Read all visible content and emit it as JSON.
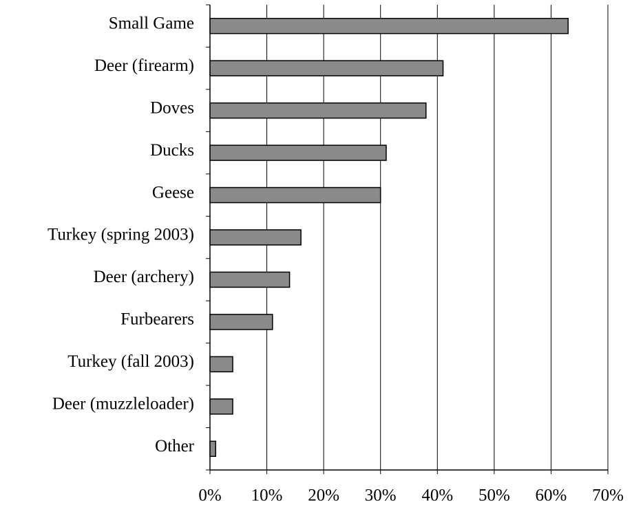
{
  "chart_data": {
    "type": "bar",
    "orientation": "horizontal",
    "categories": [
      "Small Game",
      "Deer (firearm)",
      "Doves",
      "Ducks",
      "Geese",
      "Turkey (spring 2003)",
      "Deer (archery)",
      "Furbearers",
      "Turkey (fall 2003)",
      "Deer (muzzleloader)",
      "Other"
    ],
    "values": [
      63,
      41,
      38,
      31,
      30,
      16,
      14,
      11,
      4,
      4,
      1
    ],
    "color": "#8a8a8a",
    "xlim": [
      0,
      70
    ],
    "xticks": [
      {
        "value": 0,
        "label": "0%"
      },
      {
        "value": 10,
        "label": "10%"
      },
      {
        "value": 20,
        "label": "20%"
      },
      {
        "value": 30,
        "label": "30%"
      },
      {
        "value": 40,
        "label": "40%"
      },
      {
        "value": 50,
        "label": "50%"
      },
      {
        "value": 60,
        "label": "60%"
      },
      {
        "value": 70,
        "label": "70%"
      }
    ],
    "grid": true
  }
}
